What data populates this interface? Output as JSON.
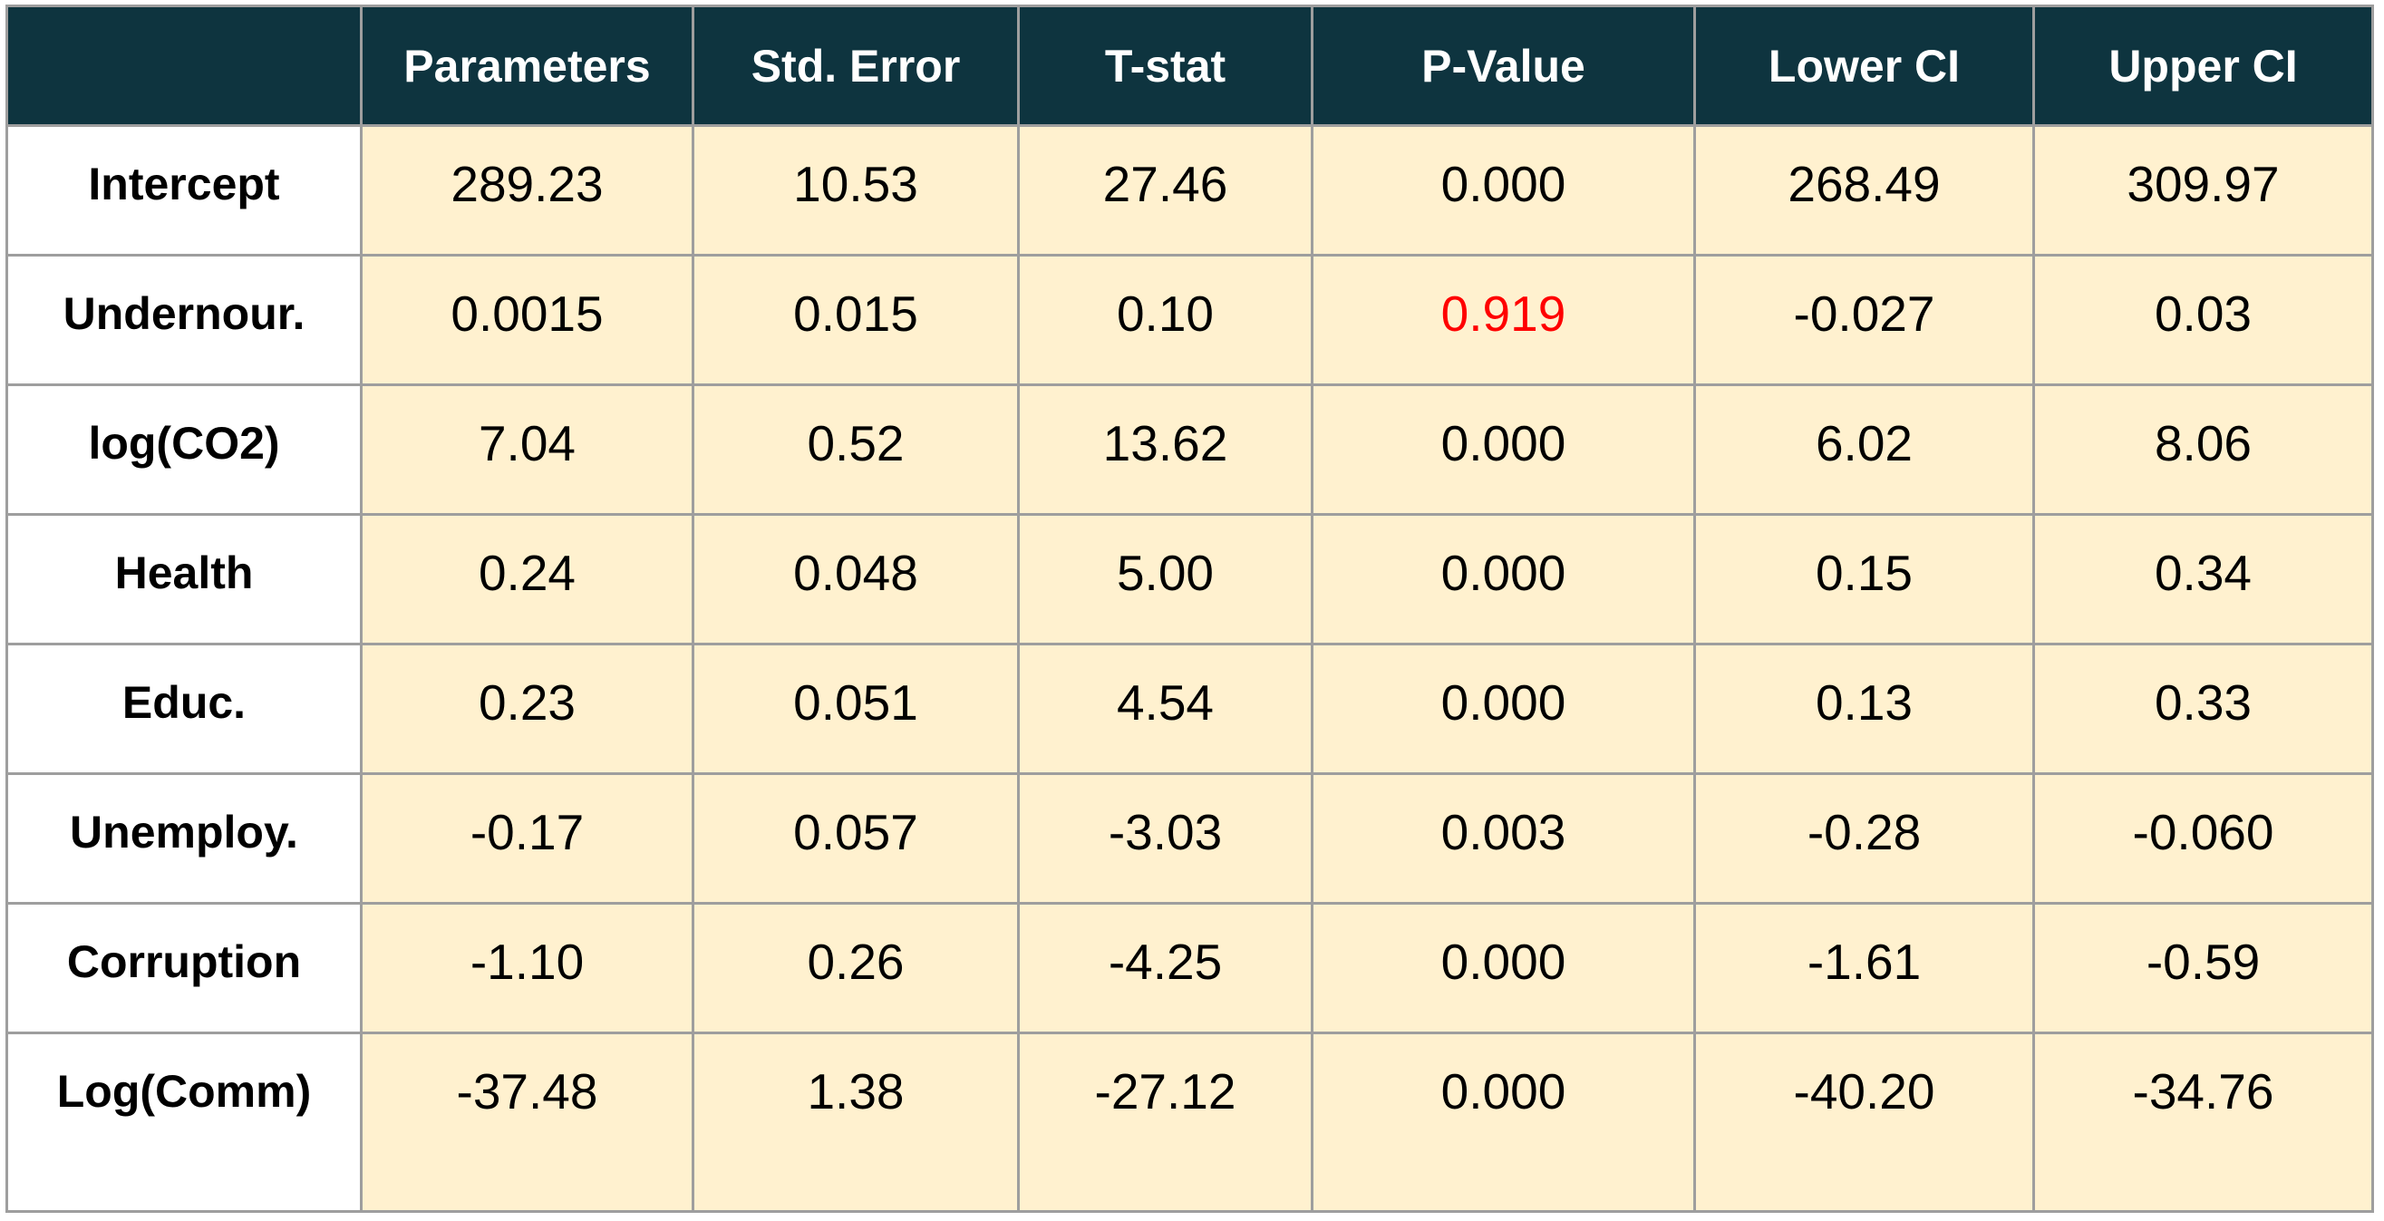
{
  "table": {
    "header": {
      "corner": "",
      "columns": [
        "Parameters",
        "Std. Error",
        "T-stat",
        "P-Value",
        "Lower CI",
        "Upper CI"
      ]
    },
    "rows": [
      {
        "label": "Intercept",
        "values": [
          "289.23",
          "10.53",
          "27.46",
          "0.000",
          "268.49",
          "309.97"
        ]
      },
      {
        "label": "Undernour.",
        "values": [
          "0.0015",
          "0.015",
          "0.10",
          "0.919",
          "-0.027",
          "0.03"
        ]
      },
      {
        "label": "log(CO2)",
        "values": [
          "7.04",
          "0.52",
          "13.62",
          "0.000",
          "6.02",
          "8.06"
        ]
      },
      {
        "label": "Health",
        "values": [
          "0.24",
          "0.048",
          "5.00",
          "0.000",
          "0.15",
          "0.34"
        ]
      },
      {
        "label": "Educ.",
        "values": [
          "0.23",
          "0.051",
          "4.54",
          "0.000",
          "0.13",
          "0.33"
        ]
      },
      {
        "label": "Unemploy.",
        "values": [
          "-0.17",
          "0.057",
          "-3.03",
          "0.003",
          "-0.28",
          "-0.060"
        ]
      },
      {
        "label": "Corruption",
        "values": [
          "-1.10",
          "0.26",
          "-4.25",
          "0.000",
          "-1.61",
          "-0.59"
        ]
      },
      {
        "label": "Log(Comm)",
        "values": [
          "-37.48",
          "1.38",
          "-27.12",
          "0.000",
          "-40.20",
          "-34.76"
        ]
      }
    ]
  },
  "colors": {
    "header_background": "#0e343f",
    "header_text": "#ffffff",
    "label_background": "#ffffff",
    "cell_background": "#fff1cf",
    "grid_lines": "#9e9e9e",
    "highlight_text": "#ff0000"
  }
}
